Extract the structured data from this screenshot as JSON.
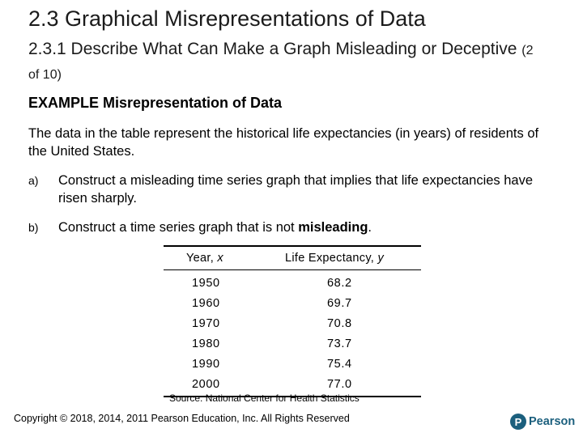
{
  "slide": {
    "title": "2.3 Graphical Misrepresentations of Data",
    "subtitle_main": "2.3.1 Describe What Can Make a Graph Misleading or Deceptive",
    "subtitle_page": "(2 of 10)",
    "example_heading": "EXAMPLE Misrepresentation of Data",
    "intro": "The data in the table represent the historical life expectancies (in years) of residents of the United States.",
    "items": [
      {
        "marker": "a)",
        "text": "Construct a misleading time series graph that implies that life expectancies have risen sharply."
      },
      {
        "marker": "b)",
        "text_before": "Construct a time series graph that is not ",
        "text_bold": "misleading",
        "text_after": "."
      }
    ]
  },
  "table": {
    "col1_label": "Year,",
    "col1_var": "x",
    "col2_label": "Life Expectancy,",
    "col2_var": "y",
    "rows": [
      {
        "year": "1950",
        "life": "68.2"
      },
      {
        "year": "1960",
        "life": "69.7"
      },
      {
        "year": "1970",
        "life": "70.8"
      },
      {
        "year": "1980",
        "life": "73.7"
      },
      {
        "year": "1990",
        "life": "75.4"
      },
      {
        "year": "2000",
        "life": "77.0"
      }
    ],
    "source": "Source: National Center for Health Statistics"
  },
  "footer": {
    "copyright": "Copyright © 2018, 2014, 2011 Pearson Education, Inc. All Rights Reserved",
    "logo_mark": "P",
    "logo_text": "Pearson",
    "logo_color": "#1b5f7d"
  }
}
